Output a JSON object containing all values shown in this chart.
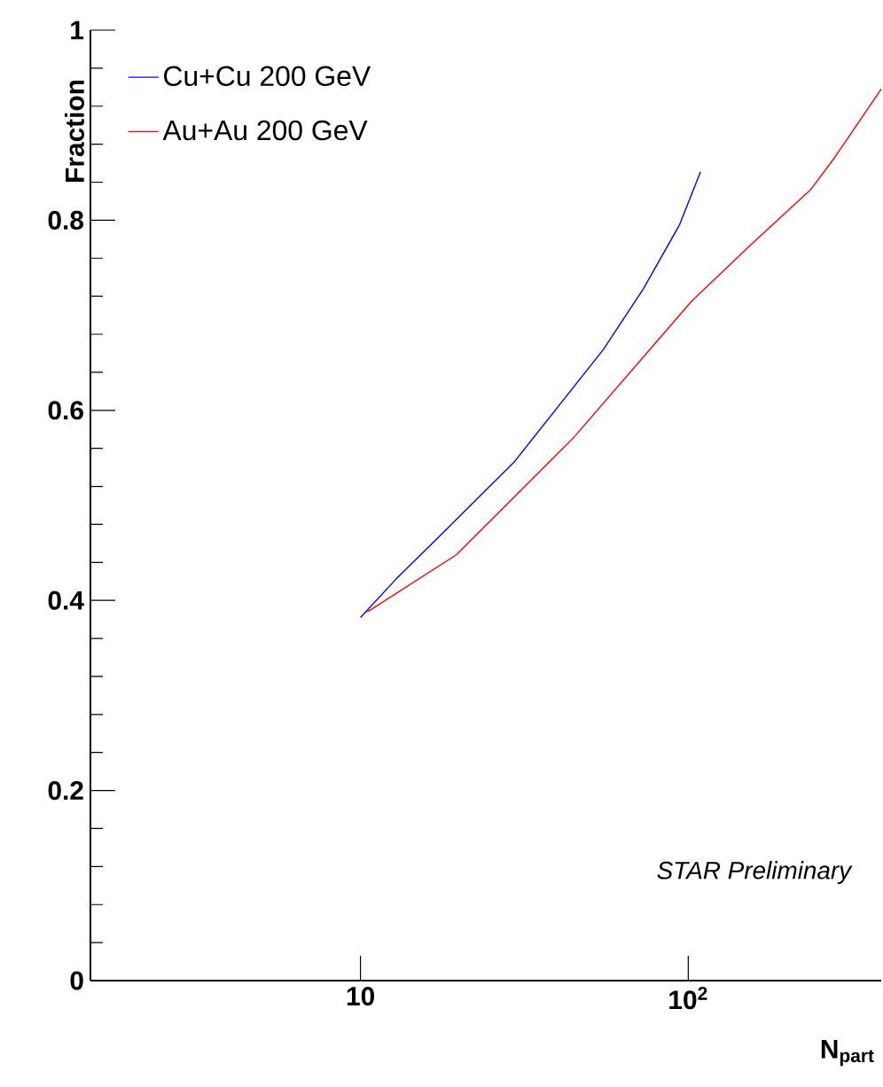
{
  "chart_data": {
    "type": "line",
    "xlabel": "N$_{part}$",
    "ylabel": "Fraction",
    "log": "x",
    "xlim": [
      1.5,
      388
    ],
    "ylim": [
      0,
      1
    ],
    "xticks": [
      {
        "value": 10,
        "label": "10"
      },
      {
        "value": 100,
        "label": "10$^{2}$"
      }
    ],
    "yticks": [
      0,
      0.2,
      0.4,
      0.6,
      0.8,
      1
    ],
    "series": [
      {
        "name": "Cu+Cu 200 GeV",
        "color": "#0000ff",
        "x": [
          10.0,
          12.8,
          19.6,
          29.5,
          55.1,
          73,
          94,
          109
        ],
        "values": [
          0.382,
          0.422,
          0.485,
          0.546,
          0.664,
          0.728,
          0.795,
          0.851
        ]
      },
      {
        "name": "Au+Au 200 GeV",
        "color": "#ff0000",
        "x": [
          10.5,
          19.6,
          29.5,
          44.6,
          102.5,
          155,
          236,
          277,
          388
        ],
        "values": [
          0.388,
          0.448,
          0.509,
          0.571,
          0.715,
          0.774,
          0.832,
          0.864,
          0.938
        ]
      }
    ],
    "legend": "top left",
    "grid": false,
    "marker": "none",
    "line_style": "solid",
    "annotations": [
      "STAR Preliminary"
    ]
  }
}
